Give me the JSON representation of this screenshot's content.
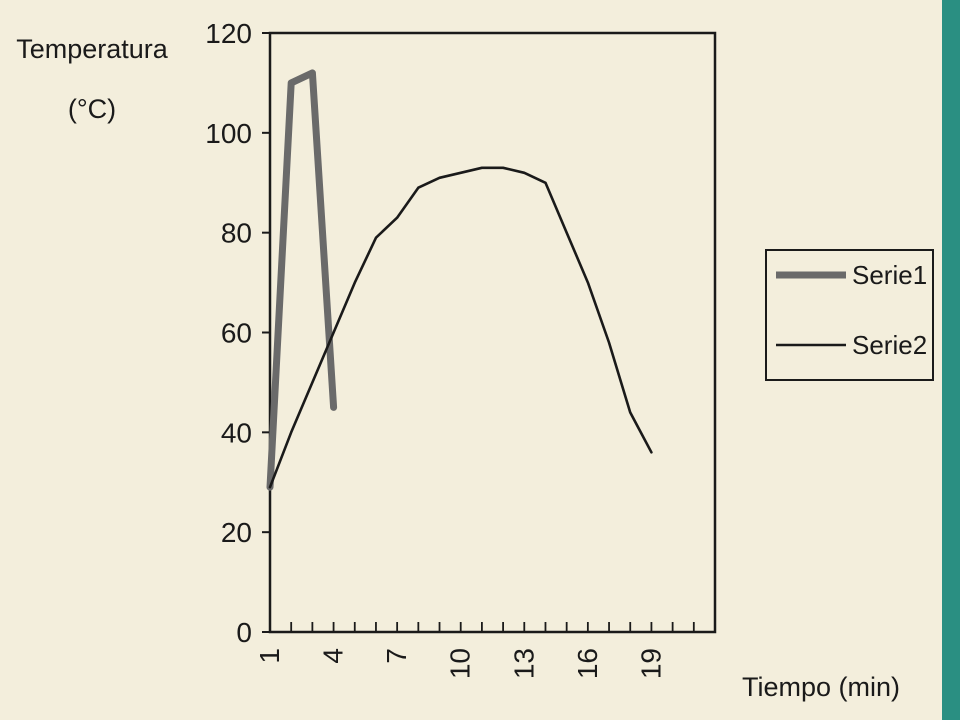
{
  "chart_data": {
    "type": "line",
    "ylabel_line1": "Temperatura",
    "ylabel_line2": "(°C)",
    "xlabel": "Tiempo (min)",
    "ylim": [
      0,
      120
    ],
    "yticks": [
      0,
      20,
      40,
      60,
      80,
      100,
      120
    ],
    "xlim": [
      1,
      22
    ],
    "xticks": [
      1,
      4,
      7,
      10,
      13,
      16,
      19
    ],
    "legend_position": "right",
    "series": [
      {
        "name": "Serie1",
        "color": "#6a6a6a",
        "points": [
          [
            1,
            29
          ],
          [
            2,
            110
          ],
          [
            3,
            112
          ],
          [
            4,
            45
          ]
        ]
      },
      {
        "name": "Serie2",
        "color": "#1a1a1a",
        "points": [
          [
            1,
            29
          ],
          [
            2,
            40
          ],
          [
            3,
            50
          ],
          [
            4,
            60
          ],
          [
            5,
            70
          ],
          [
            6,
            79
          ],
          [
            7,
            83
          ],
          [
            8,
            89
          ],
          [
            9,
            91
          ],
          [
            10,
            92
          ],
          [
            11,
            93
          ],
          [
            12,
            93
          ],
          [
            13,
            92
          ],
          [
            14,
            90
          ],
          [
            15,
            80
          ],
          [
            16,
            70
          ],
          [
            17,
            58
          ],
          [
            18,
            44
          ],
          [
            19,
            36
          ]
        ]
      }
    ]
  }
}
